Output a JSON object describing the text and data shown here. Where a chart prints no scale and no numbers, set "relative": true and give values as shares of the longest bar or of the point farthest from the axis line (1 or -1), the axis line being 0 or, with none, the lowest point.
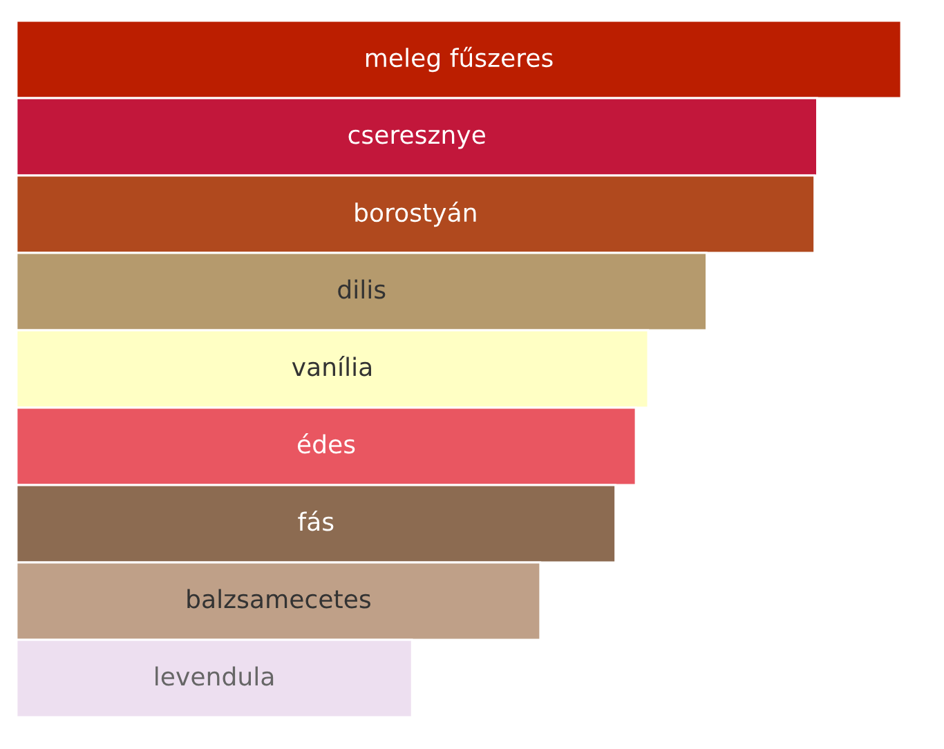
{
  "chart_data": {
    "type": "bar",
    "orientation": "horizontal",
    "relative": true,
    "categories": [
      "meleg fűszeres",
      "cseresznye",
      "borostyán",
      "dilis",
      "vanília",
      "édes",
      "fás",
      "balzsamecetes",
      "levendula"
    ],
    "values": [
      1,
      0.905,
      0.902,
      0.78,
      0.714,
      0.7,
      0.677,
      0.592,
      0.447
    ],
    "colors": [
      "#bb1e00",
      "#c2173b",
      "#b0491e",
      "#b59a6d",
      "#ffffc4",
      "#e95661",
      "#8c6b51",
      "#bfa088",
      "#eddff0"
    ]
  }
}
